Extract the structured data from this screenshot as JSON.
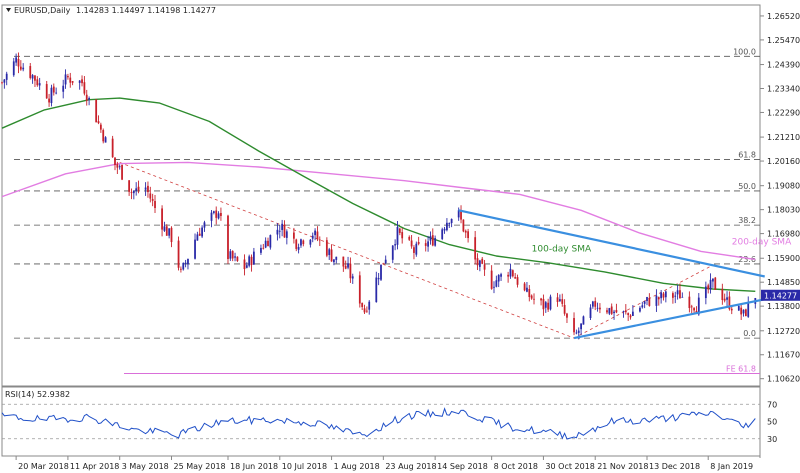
{
  "header": {
    "symbol": "EURUSD,Daily",
    "ohlc": "1.14283 1.14497 1.14198 1.14277"
  },
  "colors": {
    "bull": "#2a2aa8",
    "bear": "#c8202a",
    "sma100": "#2e8b2e",
    "sma200": "#e27de2",
    "trend": "#3a8fe0",
    "fib": "#555555",
    "fe": "#d96fd9",
    "rsi": "#2050c8",
    "price_badge": "#2a2aa8",
    "diag": "#d04040"
  },
  "chart_data": [
    {
      "type": "candlestick",
      "title": "",
      "y_axis": {
        "ticks": [
          1.2652,
          1.2547,
          1.2439,
          1.2334,
          1.2229,
          1.2121,
          1.2016,
          1.1908,
          1.1803,
          1.1698,
          1.159,
          1.1485,
          1.138,
          1.1272,
          1.1167,
          1.1062
        ],
        "tick_labels": [
          "1.26520",
          "1.25470",
          "1.24390",
          "1.23340",
          "1.22290",
          "1.21210",
          "1.20160",
          "1.19080",
          "1.18030",
          "1.16980",
          "1.15900",
          "1.14850",
          "1.13800",
          "1.12720",
          "1.11670",
          "1.10620"
        ],
        "range": [
          1.103,
          1.27
        ]
      },
      "x_axis": {
        "labels": [
          "20 Mar 2018",
          "11 Apr 2018",
          "3 May 2018",
          "25 May 2018",
          "18 Jun 2018",
          "10 Jul 2018",
          "1 Aug 2018",
          "23 Aug 2018",
          "14 Sep 2018",
          "8 Oct 2018",
          "30 Oct 2018",
          "21 Nov 2018",
          "13 Dec 2018",
          "8 Jan 2019"
        ],
        "range": [
          "2018-03-14",
          "2019-01-30"
        ]
      },
      "current_price": {
        "value": 1.14277,
        "label": "1.14277"
      },
      "price_path": [
        [
          "2018-03-14",
          1.236
        ],
        [
          "2018-03-20",
          1.246
        ],
        [
          "2018-03-27",
          1.239
        ],
        [
          "2018-04-03",
          1.23
        ],
        [
          "2018-04-11",
          1.238
        ],
        [
          "2018-04-17",
          1.236
        ],
        [
          "2018-04-24",
          1.218
        ],
        [
          "2018-05-01",
          1.2
        ],
        [
          "2018-05-03",
          1.198
        ],
        [
          "2018-05-08",
          1.188
        ],
        [
          "2018-05-14",
          1.19
        ],
        [
          "2018-05-22",
          1.172
        ],
        [
          "2018-05-25",
          1.168
        ],
        [
          "2018-05-29",
          1.152
        ],
        [
          "2018-06-05",
          1.17
        ],
        [
          "2018-06-14",
          1.18
        ],
        [
          "2018-06-18",
          1.16
        ],
        [
          "2018-06-25",
          1.155
        ],
        [
          "2018-07-03",
          1.165
        ],
        [
          "2018-07-10",
          1.173
        ],
        [
          "2018-07-17",
          1.166
        ],
        [
          "2018-07-24",
          1.17
        ],
        [
          "2018-08-01",
          1.16
        ],
        [
          "2018-08-08",
          1.154
        ],
        [
          "2018-08-15",
          1.136
        ],
        [
          "2018-08-23",
          1.158
        ],
        [
          "2018-08-29",
          1.17
        ],
        [
          "2018-09-05",
          1.162
        ],
        [
          "2018-09-14",
          1.168
        ],
        [
          "2018-09-20",
          1.177
        ],
        [
          "2018-09-24",
          1.178
        ],
        [
          "2018-10-01",
          1.158
        ],
        [
          "2018-10-08",
          1.148
        ],
        [
          "2018-10-16",
          1.154
        ],
        [
          "2018-10-22",
          1.144
        ],
        [
          "2018-10-30",
          1.138
        ],
        [
          "2018-11-05",
          1.142
        ],
        [
          "2018-11-12",
          1.124
        ],
        [
          "2018-11-21",
          1.139
        ],
        [
          "2018-11-28",
          1.136
        ],
        [
          "2018-12-05",
          1.134
        ],
        [
          "2018-12-13",
          1.14
        ],
        [
          "2018-12-20",
          1.142
        ],
        [
          "2018-12-27",
          1.143
        ],
        [
          "2019-01-03",
          1.138
        ],
        [
          "2019-01-10",
          1.148
        ],
        [
          "2019-01-16",
          1.14
        ],
        [
          "2019-01-23",
          1.134
        ],
        [
          "2019-01-28",
          1.1428
        ]
      ],
      "indicators": {
        "sma100": {
          "label": "100-day SMA",
          "points": [
            [
              "2018-03-14",
              1.216
            ],
            [
              "2018-04-01",
              1.224
            ],
            [
              "2018-04-20",
              1.2285
            ],
            [
              "2018-05-03",
              1.2292
            ],
            [
              "2018-05-20",
              1.227
            ],
            [
              "2018-06-10",
              1.219
            ],
            [
              "2018-07-01",
              1.206
            ],
            [
              "2018-07-20",
              1.195
            ],
            [
              "2018-08-10",
              1.183
            ],
            [
              "2018-09-01",
              1.172
            ],
            [
              "2018-09-20",
              1.165
            ],
            [
              "2018-10-10",
              1.16
            ],
            [
              "2018-11-01",
              1.157
            ],
            [
              "2018-11-25",
              1.153
            ],
            [
              "2018-12-20",
              1.148
            ],
            [
              "2019-01-10",
              1.1455
            ],
            [
              "2019-01-28",
              1.1445
            ]
          ]
        },
        "sma200": {
          "label": "200-day SMA",
          "points": [
            [
              "2018-03-14",
              1.186
            ],
            [
              "2018-04-10",
              1.196
            ],
            [
              "2018-05-03",
              1.2005
            ],
            [
              "2018-06-01",
              1.201
            ],
            [
              "2018-07-01",
              1.199
            ],
            [
              "2018-08-01",
              1.196
            ],
            [
              "2018-09-01",
              1.193
            ],
            [
              "2018-09-25",
              1.19
            ],
            [
              "2018-10-20",
              1.187
            ],
            [
              "2018-11-15",
              1.18
            ],
            [
              "2018-12-10",
              1.17
            ],
            [
              "2019-01-05",
              1.162
            ],
            [
              "2019-01-28",
              1.1585
            ]
          ]
        }
      },
      "trendlines": [
        {
          "start": [
            "2018-09-24",
            1.18
          ],
          "end": [
            "2019-02-01",
            1.151
          ]
        },
        {
          "start": [
            "2018-11-12",
            1.124
          ],
          "end": [
            "2019-02-01",
            1.141
          ]
        }
      ],
      "fib_levels": [
        {
          "label": "100.0",
          "value": 1.2475
        },
        {
          "label": "61.8",
          "value": 1.2023
        },
        {
          "label": "50.0",
          "value": 1.1885
        },
        {
          "label": "38.2",
          "value": 1.1735
        },
        {
          "label": "23.6",
          "value": 1.1565
        },
        {
          "label": "0.0",
          "value": 1.124
        }
      ],
      "fe_level": {
        "label": "FE 61.8",
        "value": 1.1085
      }
    },
    {
      "type": "line",
      "title": "RSI(14) 52.9382",
      "y_axis": {
        "ticks": [
          70,
          50,
          30
        ],
        "tick_labels": [
          "70",
          "50",
          "30"
        ],
        "range": [
          10,
          90
        ]
      },
      "levels": [
        70,
        30
      ],
      "points": [
        [
          "2018-03-14",
          56
        ],
        [
          "2018-04-01",
          52
        ],
        [
          "2018-04-20",
          55
        ],
        [
          "2018-05-10",
          40
        ],
        [
          "2018-05-28",
          35
        ],
        [
          "2018-06-15",
          50
        ],
        [
          "2018-07-05",
          52
        ],
        [
          "2018-07-25",
          48
        ],
        [
          "2018-08-14",
          34
        ],
        [
          "2018-09-01",
          56
        ],
        [
          "2018-09-24",
          62
        ],
        [
          "2018-10-15",
          44
        ],
        [
          "2018-11-12",
          33
        ],
        [
          "2018-11-28",
          50
        ],
        [
          "2018-12-15",
          52
        ],
        [
          "2019-01-10",
          60
        ],
        [
          "2019-01-23",
          44
        ],
        [
          "2019-01-28",
          53
        ]
      ]
    }
  ]
}
